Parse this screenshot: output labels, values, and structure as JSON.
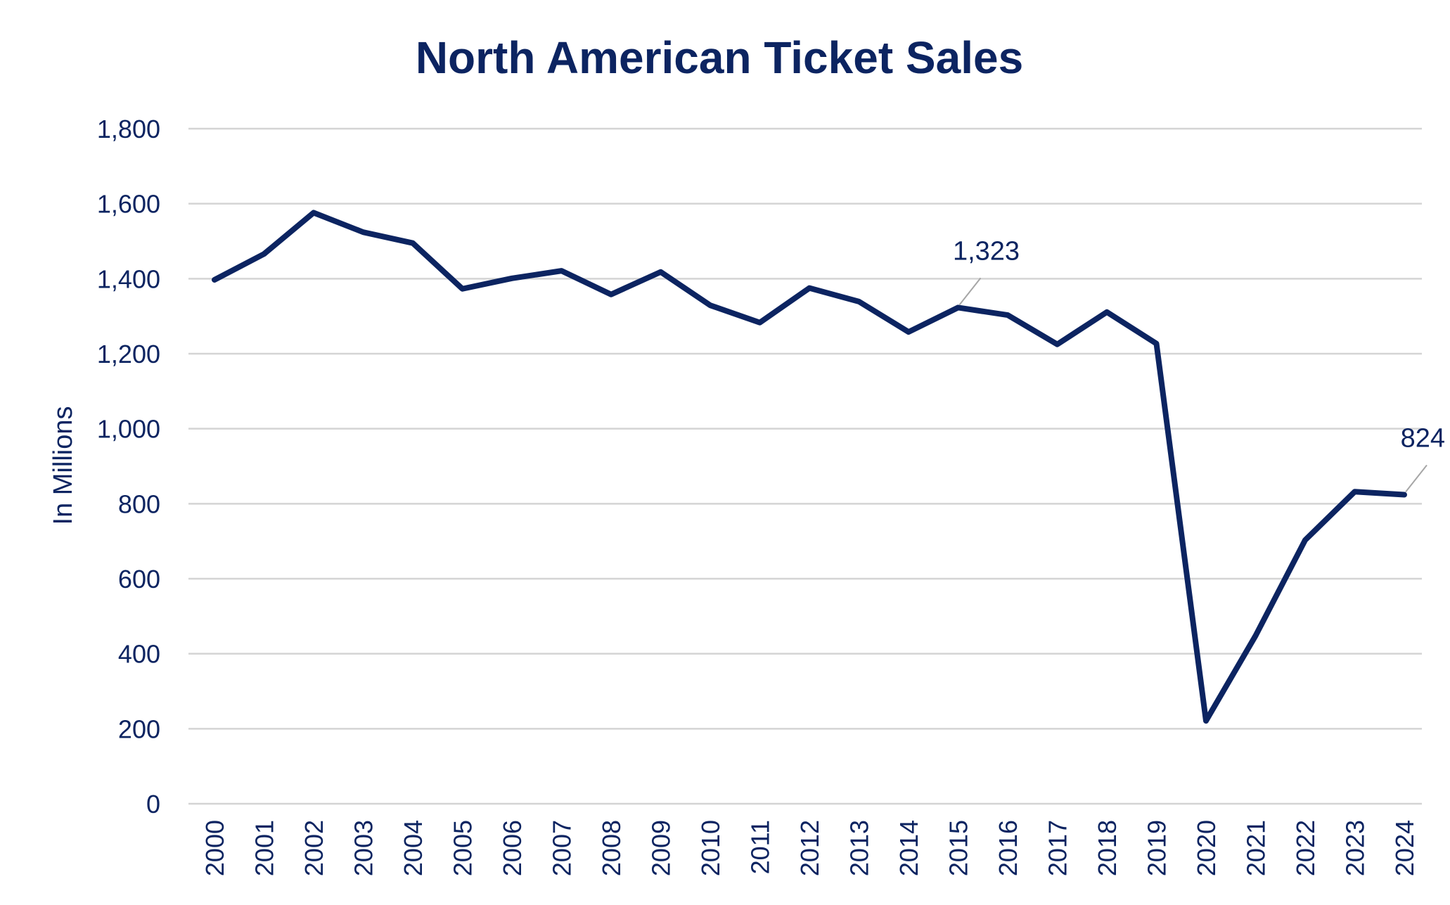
{
  "chart_data": {
    "type": "line",
    "title": "North American Ticket Sales",
    "xlabel": "",
    "ylabel": "In Millions",
    "ylim": [
      0,
      1800
    ],
    "ytick_step": 200,
    "grid": true,
    "legend": "none",
    "categories": [
      "2000",
      "2001",
      "2002",
      "2003",
      "2004",
      "2005",
      "2006",
      "2007",
      "2008",
      "2009",
      "2010",
      "2011",
      "2012",
      "2013",
      "2014",
      "2015",
      "2016",
      "2017",
      "2018",
      "2019",
      "2020",
      "2021",
      "2022",
      "2023",
      "2024"
    ],
    "series": [
      {
        "name": "Ticket Sales",
        "color": "#0c2461",
        "values": [
          1397,
          1466,
          1576,
          1524,
          1495,
          1373,
          1401,
          1421,
          1358,
          1418,
          1329,
          1283,
          1375,
          1339,
          1258,
          1323,
          1303,
          1225,
          1311,
          1227,
          221,
          448,
          703,
          832,
          824
        ]
      }
    ],
    "annotations": [
      {
        "label": "1,323",
        "category": "2015",
        "value": 1323
      },
      {
        "label": "824",
        "category": "2024",
        "value": 824
      }
    ]
  }
}
